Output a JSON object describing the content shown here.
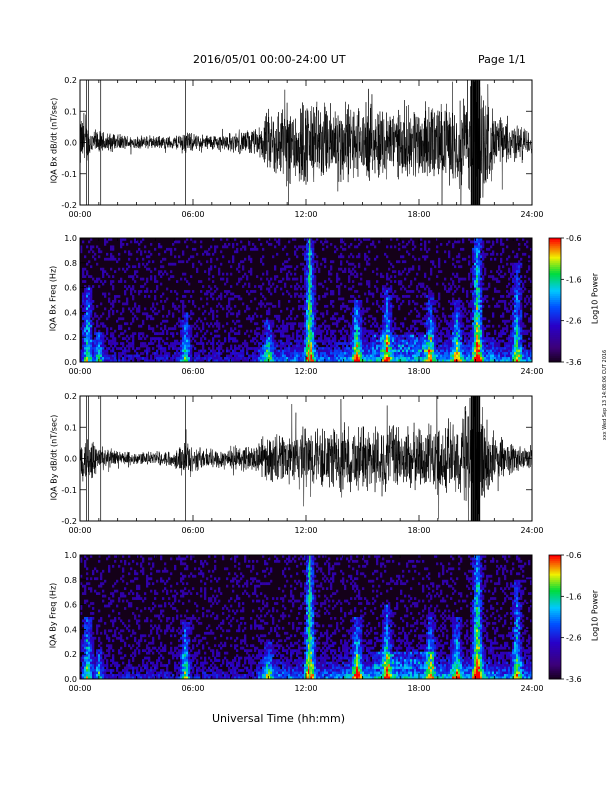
{
  "header": {
    "date_range": "2016/05/01   00:00-24:00 UT",
    "page": "Page 1/1"
  },
  "xlabel": "Universal Time (hh:mm)",
  "stamp": "xxx Wed Sep 13 14:08:06 CUT 2016",
  "colorbar_label": "Log10 Power",
  "colors": {
    "background": "#ffffff",
    "spectrogram_bg": "#140018",
    "trace": "#000000"
  },
  "chart_data": [
    {
      "type": "line",
      "ylabel": "IQA Bx dB/dt (nT/sec)",
      "xticks": [
        "00:00",
        "06:00",
        "12:00",
        "18:00",
        "24:00"
      ],
      "yticks": [
        "0.2",
        "0.1",
        "0.0",
        "-0.1",
        "-0.2"
      ],
      "xlim": [
        0,
        24
      ],
      "ylim": [
        -0.2,
        0.2
      ],
      "amplitude_profile": {
        "hours": [
          0,
          0.5,
          1,
          2,
          3,
          4,
          5,
          5.6,
          6,
          7,
          8,
          9,
          9.5,
          10,
          11,
          12,
          13,
          14,
          15,
          16,
          17,
          18,
          19,
          20,
          20.8,
          21.2,
          22,
          23,
          24
        ],
        "amplitude": [
          0.09,
          0.05,
          0.035,
          0.025,
          0.02,
          0.02,
          0.02,
          0.04,
          0.025,
          0.025,
          0.03,
          0.04,
          0.045,
          0.1,
          0.13,
          0.14,
          0.12,
          0.13,
          0.11,
          0.12,
          0.1,
          0.12,
          0.12,
          0.12,
          0.2,
          0.2,
          0.09,
          0.06,
          0.04
        ]
      }
    },
    {
      "type": "heatmap",
      "ylabel": "IQA Bx Freq (Hz)",
      "xticks": [
        "00:00",
        "06:00",
        "12:00",
        "18:00",
        "24:00"
      ],
      "yticks": [
        "1.0",
        "0.8",
        "0.6",
        "0.4",
        "0.2",
        "0.0"
      ],
      "xlim": [
        0,
        24
      ],
      "ylim": [
        0,
        1.0
      ],
      "colorbar_ticks": [
        "-0.6",
        "-1.6",
        "-2.6",
        "-3.6"
      ],
      "colorbar_range": [
        -3.6,
        -0.6
      ],
      "enhancements": [
        {
          "hour": 0.4,
          "freq_top": 0.6,
          "intensity": 0.7
        },
        {
          "hour": 1.0,
          "freq_top": 0.25,
          "intensity": 0.55
        },
        {
          "hour": 5.6,
          "freq_top": 0.4,
          "intensity": 0.6
        },
        {
          "hour": 10.0,
          "freq_top": 0.35,
          "intensity": 0.5
        },
        {
          "hour": 12.2,
          "freq_top": 1.0,
          "intensity": 0.85
        },
        {
          "hour": 14.7,
          "freq_top": 0.5,
          "intensity": 0.7
        },
        {
          "hour": 16.3,
          "freq_top": 0.6,
          "intensity": 0.6
        },
        {
          "hour": 18.6,
          "freq_top": 0.55,
          "intensity": 0.55
        },
        {
          "hour": 20.0,
          "freq_top": 0.5,
          "intensity": 0.6
        },
        {
          "hour": 21.1,
          "freq_top": 1.0,
          "intensity": 0.9
        },
        {
          "hour": 23.2,
          "freq_top": 0.8,
          "intensity": 0.6
        }
      ]
    },
    {
      "type": "line",
      "ylabel": "IQA By dB/dt (nT/sec)",
      "xticks": [
        "00:00",
        "06:00",
        "12:00",
        "18:00",
        "24:00"
      ],
      "yticks": [
        "0.2",
        "0.1",
        "0.0",
        "-0.1",
        "-0.2"
      ],
      "xlim": [
        0,
        24
      ],
      "ylim": [
        -0.2,
        0.2
      ],
      "amplitude_profile": {
        "hours": [
          0,
          0.5,
          1,
          2,
          3,
          4,
          5,
          5.6,
          6,
          7,
          8,
          9,
          9.5,
          10,
          11,
          12,
          13,
          14,
          15,
          16,
          17,
          18,
          19,
          20,
          20.8,
          21.2,
          22,
          23,
          24
        ],
        "amplitude": [
          0.06,
          0.08,
          0.04,
          0.025,
          0.02,
          0.02,
          0.025,
          0.06,
          0.04,
          0.03,
          0.035,
          0.04,
          0.05,
          0.07,
          0.08,
          0.1,
          0.09,
          0.1,
          0.1,
          0.11,
          0.1,
          0.1,
          0.11,
          0.12,
          0.2,
          0.2,
          0.07,
          0.05,
          0.03
        ]
      }
    },
    {
      "type": "heatmap",
      "ylabel": "IQA By Freq (Hz)",
      "xticks": [
        "00:00",
        "06:00",
        "12:00",
        "18:00",
        "24:00"
      ],
      "yticks": [
        "1.0",
        "0.8",
        "0.6",
        "0.4",
        "0.2",
        "0.0"
      ],
      "xlim": [
        0,
        24
      ],
      "ylim": [
        0,
        1.0
      ],
      "colorbar_ticks": [
        "-0.6",
        "-1.6",
        "-2.6",
        "-3.6"
      ],
      "colorbar_range": [
        -3.6,
        -0.6
      ],
      "enhancements": [
        {
          "hour": 0.4,
          "freq_top": 0.5,
          "intensity": 0.65
        },
        {
          "hour": 1.0,
          "freq_top": 0.25,
          "intensity": 0.5
        },
        {
          "hour": 5.6,
          "freq_top": 0.45,
          "intensity": 0.65
        },
        {
          "hour": 10.0,
          "freq_top": 0.3,
          "intensity": 0.5
        },
        {
          "hour": 12.2,
          "freq_top": 1.0,
          "intensity": 0.85
        },
        {
          "hour": 14.7,
          "freq_top": 0.5,
          "intensity": 0.7
        },
        {
          "hour": 16.3,
          "freq_top": 0.6,
          "intensity": 0.6
        },
        {
          "hour": 18.6,
          "freq_top": 0.55,
          "intensity": 0.55
        },
        {
          "hour": 20.0,
          "freq_top": 0.5,
          "intensity": 0.6
        },
        {
          "hour": 21.1,
          "freq_top": 1.0,
          "intensity": 0.9
        },
        {
          "hour": 23.2,
          "freq_top": 0.8,
          "intensity": 0.6
        }
      ]
    }
  ]
}
